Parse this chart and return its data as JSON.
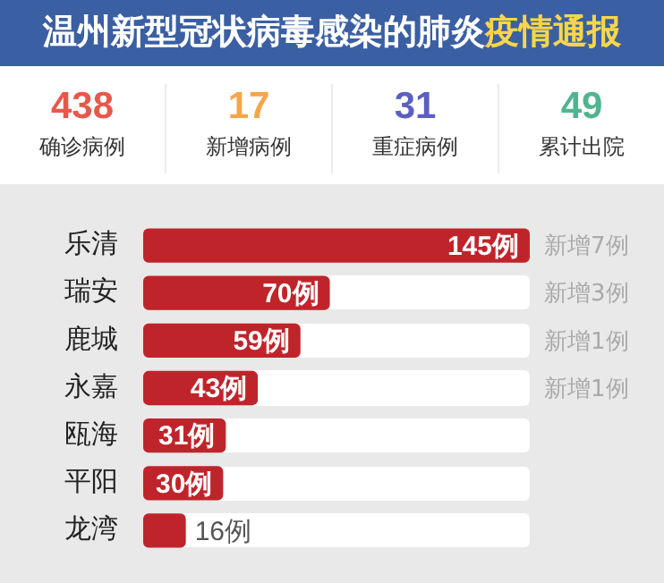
{
  "chart_data": [
    {
      "type": "other",
      "title": "温州新型冠状病毒感染的肺炎",
      "subtitle": "疫情通报",
      "annotations": [
        "438",
        "确诊病例",
        "17",
        "新增病例",
        "31",
        "重症病例",
        "49",
        "累计出院"
      ]
    },
    {
      "type": "bar",
      "orientation": "horizontal",
      "categories": [
        "乐清",
        "瑞安",
        "鹿城",
        "永嘉",
        "瓯海",
        "平阳",
        "龙湾"
      ],
      "values": [
        145,
        70,
        59,
        43,
        31,
        30,
        16
      ],
      "color": "#c0242b",
      "value_labels": [
        "145例",
        "70例",
        "59例",
        "43例",
        "31例",
        "30例",
        "16例"
      ],
      "annotations": [
        "新增7例",
        "新增3例",
        "新增1例",
        "新增1例"
      ]
    }
  ]
}
